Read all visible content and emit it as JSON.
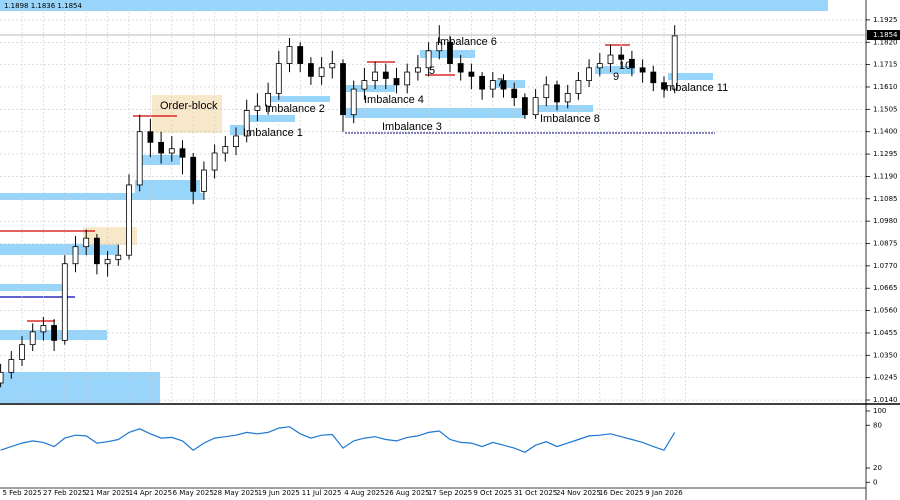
{
  "chart_data": [
    {
      "type": "candlestick",
      "header_text": "1.1898 1.1836 1.1854",
      "last_price": 1.1854,
      "annotations": [
        "Order-block",
        "Imbalance 1",
        "Imbalance 2",
        "Imbalance 3",
        "Imbalance 4",
        "5",
        "Imbalance 6",
        "7",
        "Imbalance 8",
        "9",
        "10",
        "Imbalance 11"
      ],
      "categories": [
        null,
        null,
        "5 Feb 2025",
        null,
        null,
        null,
        "27 Feb 2025",
        null,
        null,
        null,
        "21 Mar 2025",
        null,
        null,
        null,
        "14 Apr 2025",
        null,
        null,
        null,
        "6 May 2025",
        null,
        null,
        null,
        "28 May 2025",
        null,
        null,
        null,
        "19 Jun 2025",
        null,
        null,
        null,
        "11 Jul 2025",
        null,
        null,
        null,
        "4 Aug 2025",
        null,
        null,
        null,
        "26 Aug 2025",
        null,
        null,
        null,
        "17 Sep 2025",
        null,
        null,
        null,
        "9 Oct 2025",
        null,
        null,
        null,
        "31 Oct 2025",
        null,
        null,
        null,
        "24 Nov 2025",
        null,
        null,
        null,
        "16 Dec 2025",
        null,
        null,
        null,
        "9 Jan 2026",
        null
      ],
      "open": [
        1.022,
        1.027,
        1.033,
        1.04,
        1.046,
        1.049,
        1.042,
        1.078,
        1.086,
        1.09,
        1.078,
        1.08,
        1.082,
        1.115,
        1.14,
        1.135,
        1.13,
        1.132,
        1.128,
        1.112,
        1.122,
        1.13,
        1.133,
        1.138,
        1.15,
        1.152,
        1.158,
        1.172,
        1.18,
        1.172,
        1.166,
        1.17,
        1.172,
        1.148,
        1.16,
        1.164,
        1.168,
        1.165,
        1.162,
        1.168,
        1.17,
        1.178,
        1.182,
        1.172,
        1.168,
        1.166,
        1.16,
        1.164,
        1.16,
        1.156,
        1.148,
        1.156,
        1.162,
        1.154,
        1.158,
        1.164,
        1.17,
        1.172,
        1.176,
        1.174,
        1.17,
        1.168,
        1.163,
        1.16
      ],
      "high": [
        1.031,
        1.037,
        1.044,
        1.05,
        1.053,
        1.052,
        1.082,
        1.091,
        1.094,
        1.092,
        1.084,
        1.087,
        1.12,
        1.148,
        1.146,
        1.14,
        1.138,
        1.136,
        1.13,
        1.126,
        1.134,
        1.138,
        1.142,
        1.155,
        1.158,
        1.163,
        1.178,
        1.184,
        1.182,
        1.175,
        1.175,
        1.178,
        1.174,
        1.164,
        1.17,
        1.173,
        1.172,
        1.17,
        1.172,
        1.176,
        1.182,
        1.19,
        1.185,
        1.176,
        1.172,
        1.168,
        1.168,
        1.167,
        1.163,
        1.158,
        1.16,
        1.166,
        1.164,
        1.162,
        1.168,
        1.174,
        1.177,
        1.181,
        1.18,
        1.178,
        1.174,
        1.171,
        1.166,
        1.19
      ],
      "low": [
        1.02,
        1.024,
        1.03,
        1.037,
        1.042,
        1.037,
        1.04,
        1.074,
        1.082,
        1.073,
        1.072,
        1.077,
        1.08,
        1.112,
        1.128,
        1.125,
        1.126,
        1.12,
        1.106,
        1.108,
        1.118,
        1.126,
        1.129,
        1.135,
        1.145,
        1.148,
        1.155,
        1.168,
        1.168,
        1.162,
        1.162,
        1.165,
        1.14,
        1.144,
        1.155,
        1.16,
        1.16,
        1.158,
        1.158,
        1.164,
        1.166,
        1.174,
        1.168,
        1.164,
        1.16,
        1.155,
        1.156,
        1.156,
        1.152,
        1.146,
        1.146,
        1.152,
        1.15,
        1.151,
        1.155,
        1.161,
        1.166,
        1.168,
        1.17,
        1.166,
        1.163,
        1.159,
        1.156,
        1.158
      ],
      "close": [
        1.027,
        1.033,
        1.04,
        1.046,
        1.049,
        1.042,
        1.078,
        1.086,
        1.09,
        1.078,
        1.08,
        1.082,
        1.115,
        1.14,
        1.135,
        1.13,
        1.132,
        1.128,
        1.112,
        1.122,
        1.13,
        1.133,
        1.138,
        1.15,
        1.152,
        1.158,
        1.172,
        1.18,
        1.172,
        1.166,
        1.17,
        1.172,
        1.148,
        1.16,
        1.164,
        1.168,
        1.165,
        1.162,
        1.168,
        1.17,
        1.178,
        1.182,
        1.172,
        1.168,
        1.166,
        1.16,
        1.164,
        1.16,
        1.156,
        1.148,
        1.156,
        1.162,
        1.154,
        1.158,
        1.164,
        1.17,
        1.172,
        1.176,
        1.174,
        1.17,
        1.168,
        1.163,
        1.16,
        1.185
      ],
      "ylim": [
        1.0126,
        1.1995
      ],
      "yticks": [
        1.1925,
        {
          "value": 1.182,
          "label": "1.1820"
        },
        1.1715,
        {
          "value": 1.161,
          "label": "1.1610"
        },
        1.1505,
        {
          "value": 1.14,
          "label": "1.1400"
        },
        1.1295,
        {
          "value": 1.119,
          "label": "1.1190"
        },
        1.1085,
        {
          "value": 1.098,
          "label": "1.0980"
        },
        1.0875,
        {
          "value": 1.077,
          "label": "1.0770"
        },
        1.0665,
        {
          "value": 1.056,
          "label": "1.0560"
        },
        1.0455,
        {
          "value": 1.035,
          "label": "1.0350"
        },
        1.0245,
        {
          "value": 1.014,
          "label": "1.0140"
        }
      ],
      "grid": true
    },
    {
      "type": "line",
      "color": "#1e78d2",
      "values": [
        45,
        50,
        55,
        58,
        56,
        50,
        62,
        66,
        65,
        55,
        57,
        60,
        70,
        75,
        68,
        62,
        63,
        58,
        45,
        55,
        62,
        64,
        66,
        70,
        68,
        70,
        76,
        78,
        68,
        62,
        66,
        67,
        48,
        58,
        62,
        64,
        60,
        58,
        63,
        65,
        70,
        72,
        60,
        56,
        55,
        50,
        56,
        52,
        48,
        42,
        52,
        57,
        50,
        55,
        60,
        65,
        66,
        68,
        64,
        60,
        56,
        50,
        45,
        70
      ],
      "ylim": [
        -8,
        107
      ],
      "yticks": [
        100,
        80,
        20,
        0
      ]
    }
  ]
}
